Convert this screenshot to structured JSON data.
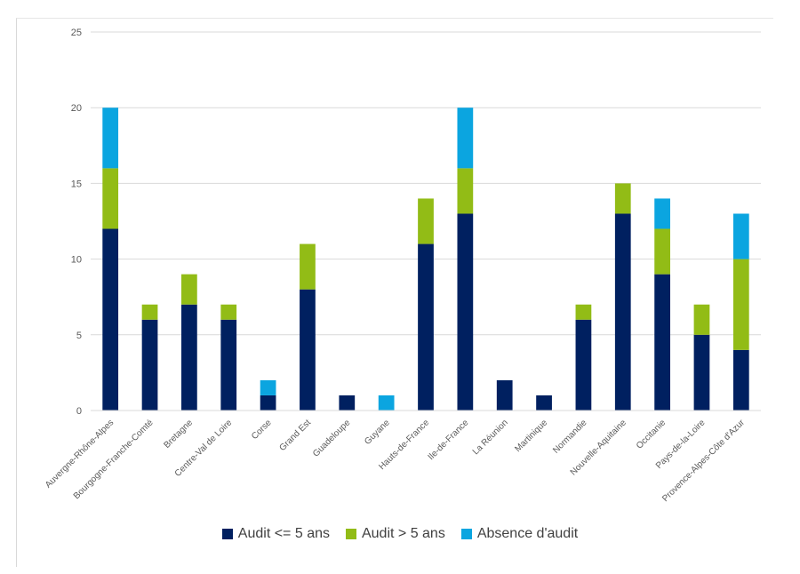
{
  "chart_data": {
    "type": "bar",
    "stacked": true,
    "categories": [
      "Auvergne-Rhône-Alpes",
      "Bourgogne-Franche-Comté",
      "Bretagne",
      "Centre-Val de Loire",
      "Corse",
      "Grand Est",
      "Guadeloupe",
      "Guyane",
      "Hauts-de-France",
      "Ile-de-France",
      "La Réunion",
      "Martinique",
      "Normandie",
      "Nouvelle-Aquitaine",
      "Occitanie",
      "Pays-de-la-Loire",
      "Provence-Alpes-Côte d'Azur"
    ],
    "series": [
      {
        "name": "Audit <= 5 ans",
        "color": "#002060",
        "values": [
          12,
          6,
          7,
          6,
          1,
          8,
          1,
          0,
          11,
          13,
          2,
          1,
          6,
          13,
          9,
          5,
          4
        ]
      },
      {
        "name": "Audit > 5 ans",
        "color": "#92BC16",
        "values": [
          4,
          1,
          2,
          1,
          0,
          3,
          0,
          0,
          3,
          3,
          0,
          0,
          1,
          2,
          3,
          2,
          6
        ]
      },
      {
        "name": "Absence d'audit",
        "color": "#0BA5E0",
        "values": [
          4,
          0,
          0,
          0,
          1,
          0,
          0,
          1,
          0,
          4,
          0,
          0,
          0,
          0,
          2,
          0,
          3
        ]
      }
    ],
    "yticks": [
      0,
      5,
      10,
      15,
      20,
      25
    ],
    "ylim": [
      0,
      25
    ],
    "grid": true,
    "legend_position": "bottom"
  }
}
